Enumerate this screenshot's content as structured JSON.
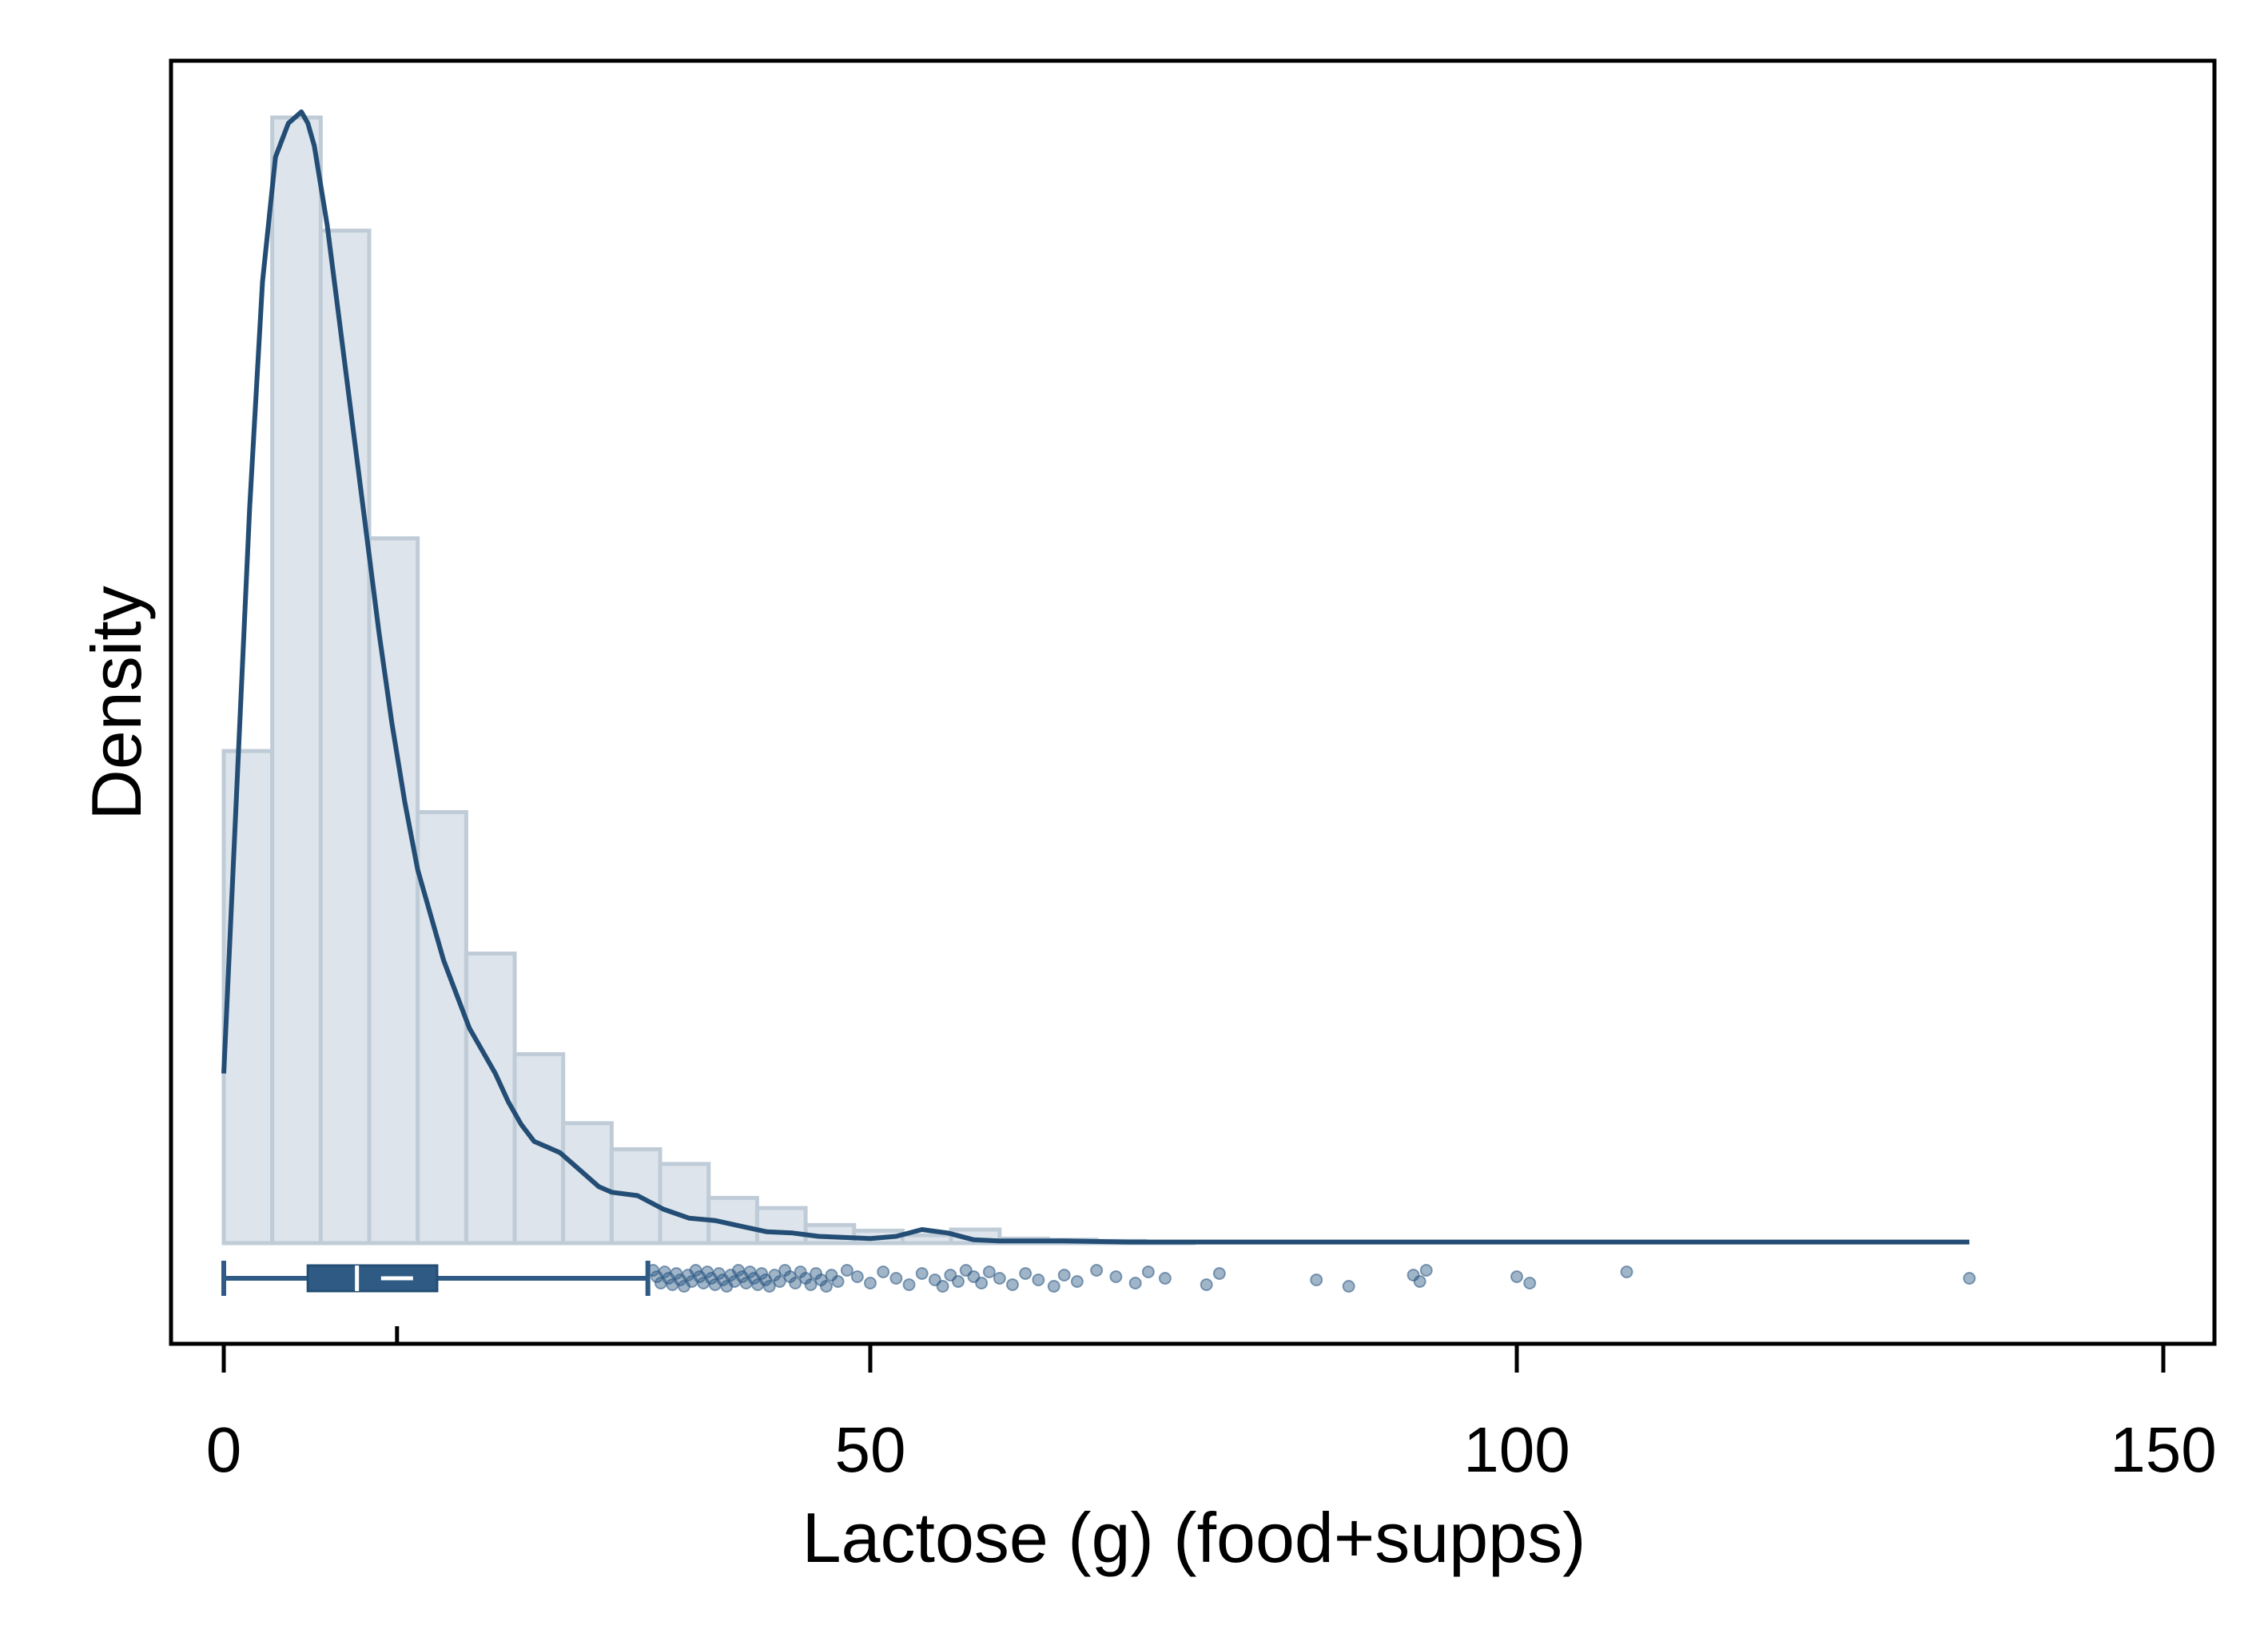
{
  "chart_data": {
    "type": "histogram",
    "xlabel": "Lactose (g) (food+supps)",
    "ylabel": "Density",
    "xlim": [
      -4,
      154
    ],
    "x_ticks": [
      0,
      50,
      100,
      150
    ],
    "y_ticks_shown": false,
    "grid": false,
    "density_max": 1.0,
    "histogram": {
      "bin_width": 3.75,
      "bin_starts": [
        0,
        3.75,
        7.5,
        11.25,
        15,
        18.75,
        22.5,
        26.25,
        30,
        33.75,
        37.5,
        41.25,
        45,
        48.75,
        52.5,
        56.25,
        60,
        63.75,
        67.5,
        71.25
      ],
      "heights": [
        0.435,
        0.995,
        0.895,
        0.623,
        0.381,
        0.256,
        0.167,
        0.106,
        0.083,
        0.07,
        0.04,
        0.031,
        0.016,
        0.011,
        0.007,
        0.012,
        0.004,
        0.003,
        0.002,
        0.001
      ]
    },
    "kde": {
      "x": [
        0,
        1,
        2,
        3,
        4,
        5,
        6,
        6.5,
        7,
        8,
        9,
        10,
        11,
        12,
        13,
        14,
        15,
        16,
        17,
        18,
        19,
        20,
        21,
        22,
        23,
        24,
        25,
        26,
        27,
        28,
        29,
        30,
        32,
        34,
        36,
        38,
        40,
        42,
        44,
        46,
        48,
        50,
        52,
        54,
        56,
        58,
        60,
        62,
        65,
        70,
        75,
        80,
        85,
        90,
        95,
        100,
        105,
        110,
        120,
        130,
        135
      ],
      "y": [
        0.15,
        0.4,
        0.65,
        0.85,
        0.96,
        0.99,
        1.0,
        0.99,
        0.97,
        0.9,
        0.81,
        0.72,
        0.63,
        0.54,
        0.46,
        0.39,
        0.33,
        0.29,
        0.25,
        0.22,
        0.19,
        0.17,
        0.15,
        0.125,
        0.105,
        0.09,
        0.085,
        0.08,
        0.07,
        0.06,
        0.05,
        0.045,
        0.042,
        0.03,
        0.022,
        0.02,
        0.015,
        0.01,
        0.009,
        0.006,
        0.005,
        0.004,
        0.006,
        0.012,
        0.009,
        0.003,
        0.002,
        0.002,
        0.002,
        0.001,
        0.001,
        0.001,
        0.001,
        0.001,
        0.001,
        0.001,
        0.001,
        0.001,
        0.001,
        0.001,
        0.001
      ]
    },
    "boxplot": {
      "whisker_low": 0,
      "q1": 6.5,
      "median": 10.3,
      "mean": 13.4,
      "q3": 16.5,
      "whisker_high": 32.8
    },
    "outliers": [
      33.2,
      33.5,
      33.8,
      34.1,
      34.4,
      34.7,
      35.0,
      35.3,
      35.6,
      35.9,
      36.2,
      36.5,
      36.8,
      37.1,
      37.4,
      37.7,
      38.0,
      38.3,
      38.6,
      38.9,
      39.2,
      39.5,
      39.8,
      40.1,
      40.4,
      40.7,
      41.0,
      41.3,
      41.6,
      41.9,
      42.2,
      42.6,
      43.0,
      43.4,
      43.8,
      44.2,
      44.6,
      45.0,
      45.4,
      45.8,
      46.2,
      46.6,
      47.0,
      47.5,
      48.2,
      49.0,
      50.0,
      51.0,
      52.0,
      53.0,
      54.0,
      55.0,
      55.6,
      56.2,
      56.8,
      57.4,
      58.0,
      58.6,
      59.2,
      60.0,
      61.0,
      62.0,
      63.0,
      64.2,
      65.0,
      66.0,
      67.5,
      69.0,
      70.5,
      71.5,
      72.8,
      76.0,
      77.0,
      84.5,
      87.0,
      92.0,
      92.5,
      93.0,
      100.0,
      101.0,
      108.5,
      135.0
    ],
    "colors": {
      "bar_fill": "#dde4eb",
      "bar_stroke": "#bfccd8",
      "line": "#234d74",
      "box": "#2e5a84",
      "points": "#2e5a84"
    }
  }
}
